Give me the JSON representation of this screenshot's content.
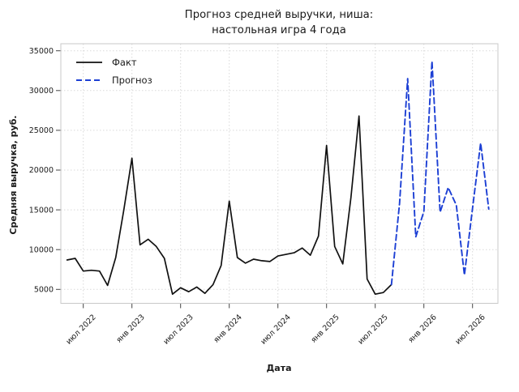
{
  "title": {
    "line1": "Прогноз средней выручки, ниша:",
    "line2": "настольная игра 4 года"
  },
  "axis": {
    "x_label": "Дата",
    "y_label": "Средняя выручка, руб."
  },
  "legend": {
    "items": [
      {
        "label": "Факт",
        "color": "#111111",
        "style": "solid"
      },
      {
        "label": "Прогноз",
        "color": "#1c3fd4",
        "style": "dashed"
      }
    ]
  },
  "chart_data": {
    "type": "line",
    "title": "Прогноз средней выручки, ниша: настольная игра 4 года",
    "xlabel": "Дата",
    "ylabel": "Средняя выручка, руб.",
    "grid": true,
    "legend_position": "upper left",
    "x_axis": {
      "unit": "months",
      "tick_step_months": 6,
      "first_tick_month_index": 2,
      "tick_labels": [
        "июл 2022",
        "янв 2023",
        "июл 2023",
        "янв 2024",
        "июл 2024",
        "янв 2025",
        "июл 2025",
        "янв 2026",
        "июл 2026"
      ]
    },
    "y_axis": {
      "ticks": [
        5000,
        10000,
        15000,
        20000,
        25000,
        30000,
        35000
      ],
      "ylim": [
        3250,
        35900
      ]
    },
    "series": [
      {
        "name": "Факт",
        "line_style": "solid",
        "color": "#111111",
        "start_month_index": 0,
        "values": [
          8700,
          8900,
          7300,
          7400,
          7300,
          5500,
          9000,
          15000,
          21500,
          10600,
          11300,
          10400,
          8900,
          4400,
          5200,
          4700,
          5300,
          4500,
          5600,
          8000,
          16100,
          9000,
          8300,
          8800,
          8600,
          8500,
          9200,
          9400,
          9600,
          10200,
          9300,
          11700,
          23100,
          10400,
          8200,
          16500,
          26800,
          6300,
          4400,
          4600,
          5600
        ]
      },
      {
        "name": "Прогноз",
        "line_style": "dashed",
        "color": "#1c3fd4",
        "start_month_index": 40,
        "values": [
          5600,
          15800,
          31500,
          11600,
          14800,
          33700,
          14700,
          17800,
          15600,
          6800,
          15200,
          23400,
          15100
        ]
      }
    ]
  }
}
